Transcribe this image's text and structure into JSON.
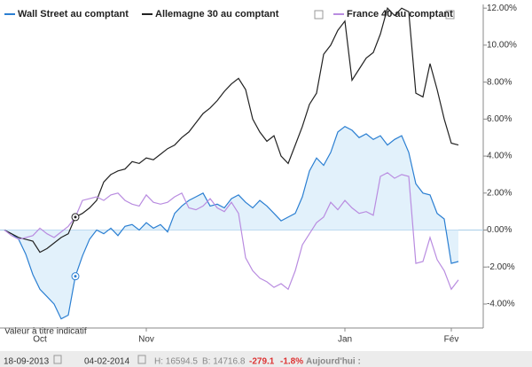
{
  "chart_data": {
    "type": "line",
    "categories": [
      null,
      null,
      null,
      null,
      null,
      "Oct",
      null,
      null,
      null,
      null,
      null,
      null,
      null,
      null,
      null,
      null,
      null,
      null,
      null,
      null,
      "Nov",
      null,
      null,
      null,
      null,
      null,
      null,
      null,
      null,
      null,
      null,
      null,
      null,
      null,
      null,
      null,
      null,
      null,
      null,
      null,
      null,
      null,
      null,
      null,
      null,
      null,
      null,
      null,
      "Jan",
      null,
      null,
      null,
      null,
      null,
      null,
      null,
      null,
      null,
      null,
      null,
      null,
      null,
      null,
      "Fév",
      null
    ],
    "series": [
      {
        "name": "Wall Street au comptant",
        "color": "#2b7fd2",
        "area_color": "#dbeefa",
        "values": [
          0,
          -0.2,
          -0.5,
          -1.3,
          -2.4,
          -3.2,
          -3.6,
          -4.0,
          -4.8,
          -4.6,
          -2.5,
          -1.4,
          -0.5,
          0.0,
          -0.2,
          0.1,
          -0.3,
          0.2,
          0.3,
          0.0,
          0.4,
          0.1,
          0.3,
          -0.1,
          0.9,
          1.3,
          1.6,
          1.8,
          2.0,
          1.3,
          1.4,
          1.2,
          1.7,
          1.9,
          1.5,
          1.2,
          1.6,
          1.3,
          0.9,
          0.5,
          0.7,
          0.9,
          1.8,
          3.2,
          3.9,
          3.5,
          4.2,
          5.3,
          5.6,
          5.4,
          5.0,
          5.2,
          4.9,
          5.1,
          4.6,
          4.9,
          5.1,
          4.2,
          2.5,
          2.0,
          1.9,
          0.9,
          0.6,
          -1.8,
          -1.7
        ]
      },
      {
        "name": "Allemagne 30 au comptant",
        "color": "#222222",
        "values": [
          0,
          -0.2,
          -0.4,
          -0.5,
          -0.6,
          -1.2,
          -1.0,
          -0.7,
          -0.4,
          -0.2,
          0.7,
          0.9,
          1.2,
          1.6,
          2.6,
          3.0,
          3.2,
          3.3,
          3.7,
          3.6,
          3.9,
          3.8,
          4.1,
          4.4,
          4.6,
          5.0,
          5.3,
          5.8,
          6.3,
          6.6,
          7.0,
          7.5,
          7.9,
          8.2,
          7.6,
          6.0,
          5.3,
          4.8,
          5.1,
          4.0,
          3.6,
          4.6,
          5.6,
          6.8,
          7.4,
          9.5,
          10.0,
          10.8,
          11.3,
          8.1,
          8.7,
          9.3,
          9.6,
          10.6,
          12.0,
          11.6,
          12.0,
          11.8,
          7.4,
          7.2,
          9.0,
          7.6,
          6.0,
          4.7,
          4.6
        ]
      },
      {
        "name": "France 40 au comptant",
        "color": "#b98ce0",
        "values": [
          0,
          -0.3,
          -0.5,
          -0.4,
          -0.3,
          0.1,
          -0.2,
          -0.4,
          -0.1,
          0.2,
          0.7,
          1.6,
          1.7,
          1.8,
          1.6,
          1.9,
          2.0,
          1.6,
          1.4,
          1.3,
          1.9,
          1.5,
          1.4,
          1.5,
          1.8,
          2.0,
          1.2,
          1.1,
          1.3,
          1.7,
          1.2,
          1.0,
          1.5,
          0.9,
          -1.5,
          -2.2,
          -2.6,
          -2.8,
          -3.1,
          -2.9,
          -3.2,
          -2.2,
          -0.8,
          -0.2,
          0.4,
          0.7,
          1.5,
          1.1,
          1.6,
          1.2,
          0.9,
          1.0,
          0.8,
          2.9,
          3.1,
          2.8,
          3.0,
          2.9,
          -1.8,
          -1.7,
          -0.4,
          -1.6,
          -2.2,
          -3.2,
          -2.7
        ]
      }
    ],
    "ylim": [
      -5.2,
      12.2
    ],
    "yticks": [
      {
        "value": 12,
        "label": "12.00%"
      },
      {
        "value": 10,
        "label": "10.00%"
      },
      {
        "value": 8,
        "label": "8.00%"
      },
      {
        "value": 6,
        "label": "6.00%"
      },
      {
        "value": 4,
        "label": "4.00%"
      },
      {
        "value": 2,
        "label": "2.00%"
      },
      {
        "value": 0,
        "label": "0.00%"
      },
      {
        "value": -2,
        "label": "-2.00%"
      },
      {
        "value": -4,
        "label": "-4.00%"
      }
    ],
    "note": "Valeur à titre indicatif",
    "footer": {
      "start_date": "18-09-2013",
      "end_date": "04-02-2014",
      "high": "H: 16594.5",
      "low": "B: 14716.8",
      "change": "-279.1",
      "change_pct": "-1.8%",
      "today": "Aujourd'hui :"
    }
  }
}
